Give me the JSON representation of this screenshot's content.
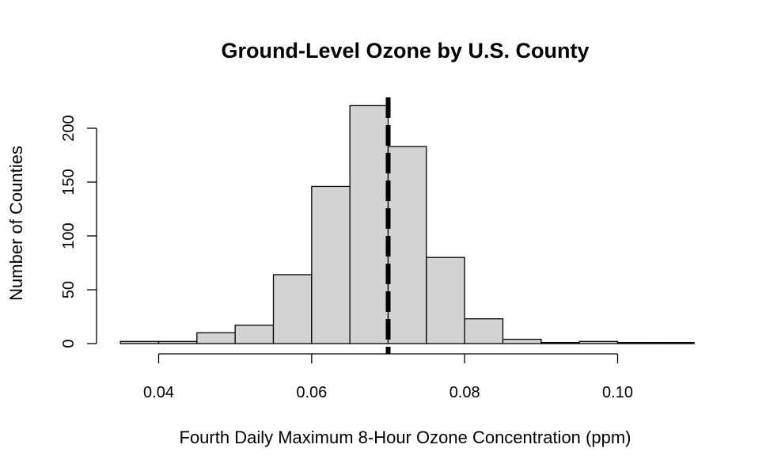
{
  "chart_data": {
    "type": "bar",
    "subtype": "histogram",
    "title": "Ground-Level Ozone by U.S. County",
    "xlabel": "Fourth Daily Maximum 8-Hour Ozone Concentration (ppm)",
    "ylabel": "Number of Counties",
    "bins": [
      {
        "x0": 0.035,
        "x1": 0.04,
        "count": 2
      },
      {
        "x0": 0.04,
        "x1": 0.045,
        "count": 2
      },
      {
        "x0": 0.045,
        "x1": 0.05,
        "count": 10
      },
      {
        "x0": 0.05,
        "x1": 0.055,
        "count": 17
      },
      {
        "x0": 0.055,
        "x1": 0.06,
        "count": 64
      },
      {
        "x0": 0.06,
        "x1": 0.065,
        "count": 146
      },
      {
        "x0": 0.065,
        "x1": 0.07,
        "count": 221
      },
      {
        "x0": 0.07,
        "x1": 0.075,
        "count": 183
      },
      {
        "x0": 0.075,
        "x1": 0.08,
        "count": 80
      },
      {
        "x0": 0.08,
        "x1": 0.085,
        "count": 23
      },
      {
        "x0": 0.085,
        "x1": 0.09,
        "count": 4
      },
      {
        "x0": 0.09,
        "x1": 0.095,
        "count": 1
      },
      {
        "x0": 0.095,
        "x1": 0.1,
        "count": 2
      },
      {
        "x0": 0.1,
        "x1": 0.105,
        "count": 1
      },
      {
        "x0": 0.105,
        "x1": 0.11,
        "count": 1
      }
    ],
    "reference_line": {
      "x": 0.07,
      "style": "dashed",
      "color": "#000000"
    },
    "xlim": [
      0.035,
      0.11
    ],
    "ylim": [
      0,
      222
    ],
    "x_ticks": [
      0.04,
      0.06,
      0.08,
      0.1
    ],
    "x_tick_labels": [
      "0.04",
      "0.06",
      "0.08",
      "0.10"
    ],
    "y_ticks": [
      0,
      50,
      100,
      150,
      200
    ],
    "y_tick_labels": [
      "0",
      "50",
      "100",
      "150",
      "200"
    ],
    "grid": false,
    "bar_fill": "#d3d3d3",
    "bar_stroke": "#000000"
  }
}
